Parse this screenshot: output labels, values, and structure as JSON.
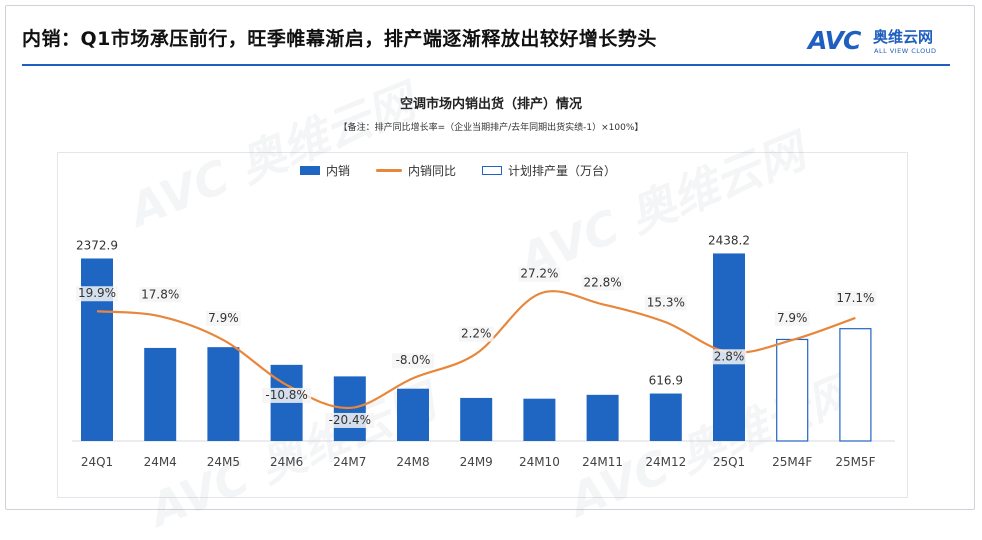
{
  "header": {
    "headline": "内销：Q1市场承压前行，旺季帷幕渐启，排产端逐渐释放出较好增长势头",
    "logo_mark": "AVC",
    "logo_cn": "奥维云网",
    "logo_en": "ALL VIEW CLOUD"
  },
  "colors": {
    "accent": "#1f5fbf",
    "bar": "#1f66c2",
    "line": "#e8873c"
  },
  "chart_data": {
    "type": "bar+line",
    "title": "空调市场内销出货（排产）情况",
    "note": "【备注：排产同比增长率=（企业当期排产/去年同期出货实绩-1）×100%】",
    "categories": [
      "24Q1",
      "24M4",
      "24M5",
      "24M6",
      "24M7",
      "24M8",
      "24M9",
      "24M10",
      "24M11",
      "24M12",
      "25Q1",
      "25M4F",
      "25M5F"
    ],
    "legend": [
      "内销",
      "内销同比",
      "计划排产量（万台）"
    ],
    "series": [
      {
        "name": "内销",
        "kind": "bar",
        "values": [
          2372.9,
          1210,
          1220,
          990,
          840,
          680,
          560,
          550,
          600,
          616.9,
          2438.2,
          null,
          null
        ],
        "labels": [
          "2372.9",
          "",
          "",
          "",
          "",
          "",
          "",
          "",
          "",
          "616.9",
          "2438.2",
          "",
          ""
        ]
      },
      {
        "name": "计划排产量（万台）",
        "kind": "bar-outline",
        "values": [
          null,
          null,
          null,
          null,
          null,
          null,
          null,
          null,
          null,
          null,
          null,
          1320,
          1460
        ]
      },
      {
        "name": "内销同比",
        "kind": "line",
        "values": [
          19.9,
          17.8,
          7.9,
          -10.8,
          -20.4,
          -8.0,
          2.2,
          27.2,
          22.8,
          15.3,
          2.8,
          7.9,
          17.1
        ],
        "labels": [
          "19.9%",
          "17.8%",
          "7.9%",
          "-10.8%",
          "-20.4%",
          "-8.0%",
          "2.2%",
          "27.2%",
          "22.8%",
          "15.3%",
          "2.8%",
          "7.9%",
          "17.1%"
        ]
      }
    ],
    "bar_axis_max": 2600,
    "line_axis_range": [
      -40,
      60
    ]
  }
}
